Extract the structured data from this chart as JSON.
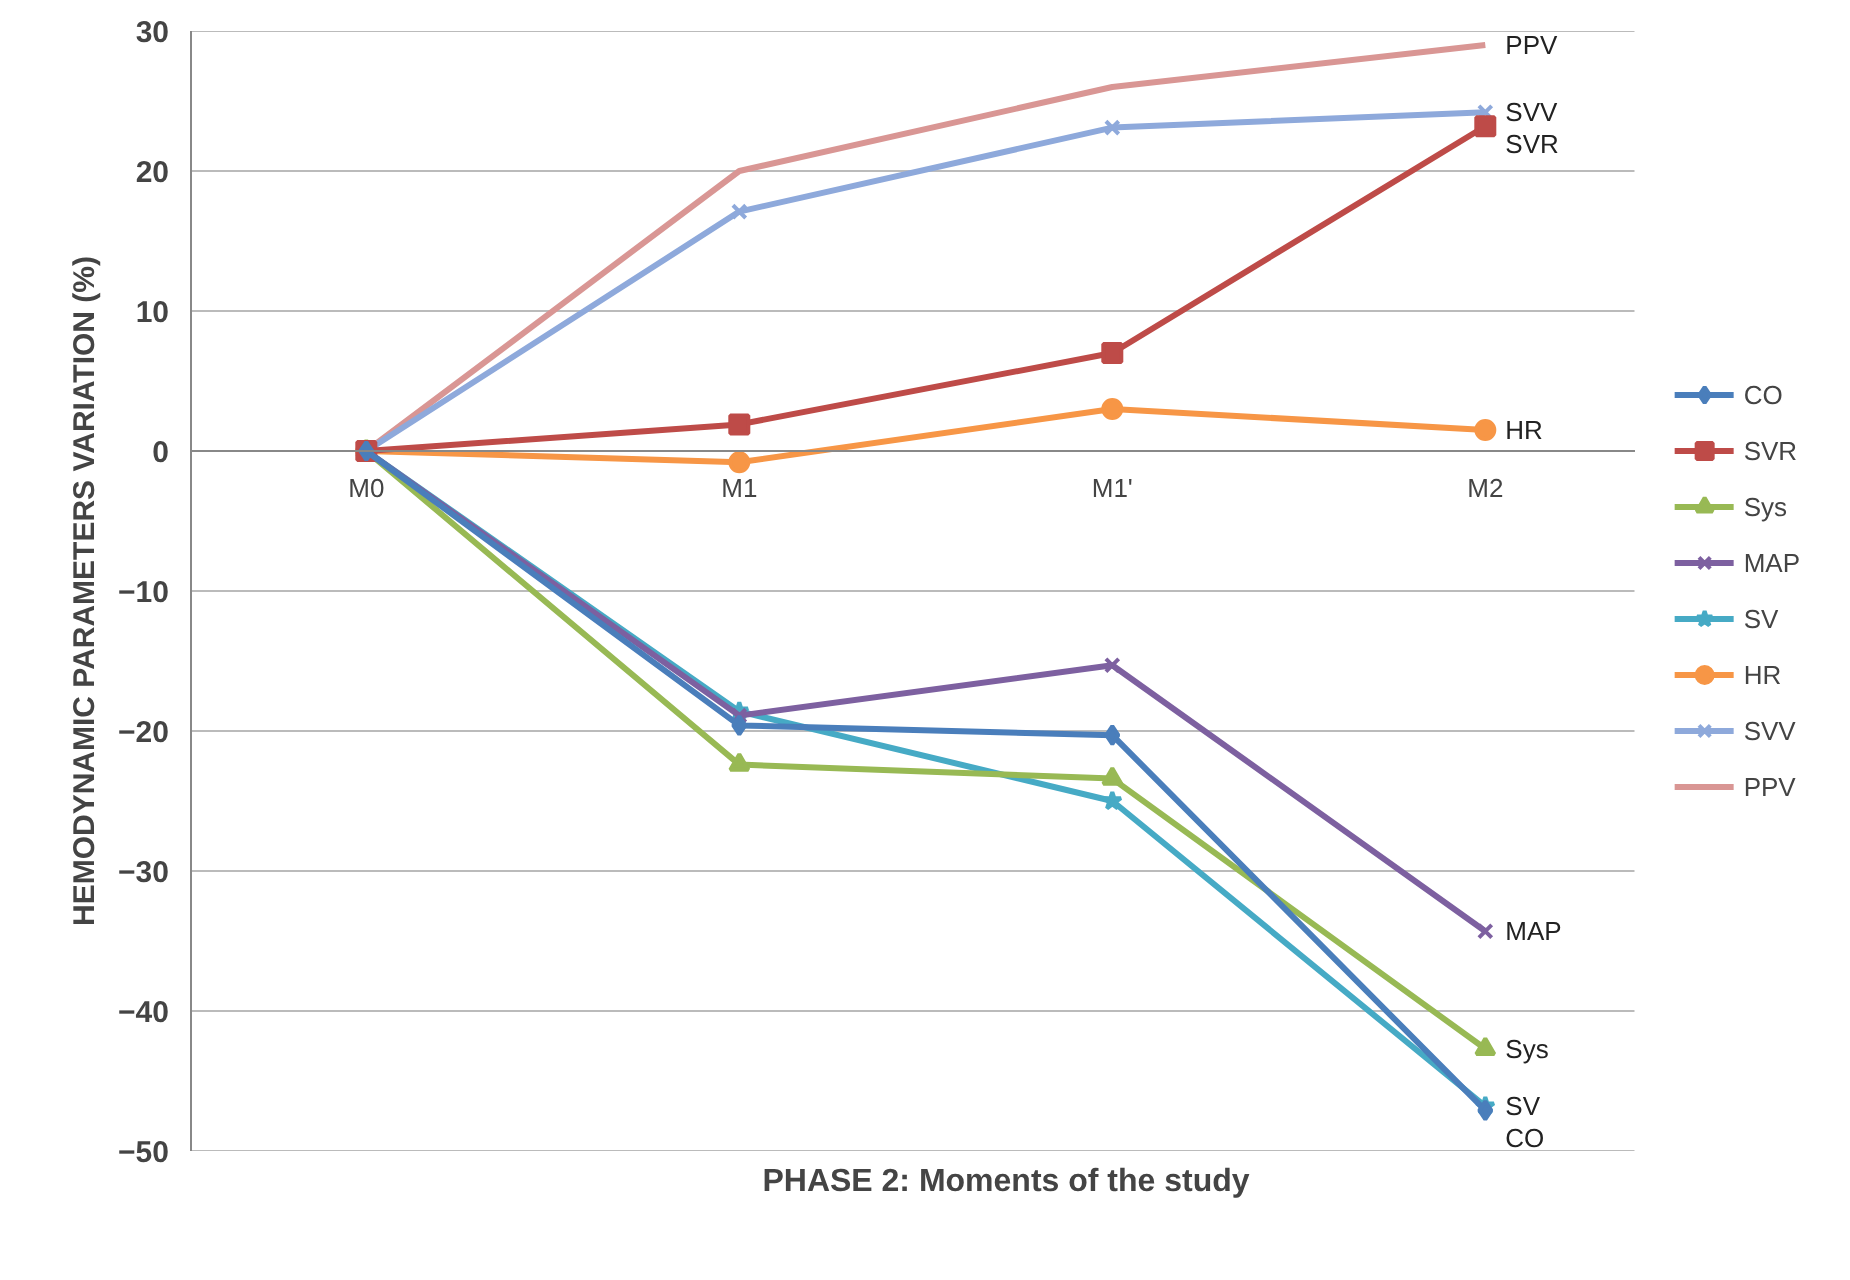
{
  "chart_data": {
    "type": "line",
    "xlabel": "PHASE 2: Moments of the study",
    "ylabel": "HEMODYNAMIC PARAMETERS VARIATION (%)",
    "categories": [
      "M0",
      "M1",
      "M1'",
      "M2"
    ],
    "ylim": [
      -50,
      30
    ],
    "yticks": [
      -50,
      -40,
      -30,
      -20,
      -10,
      0,
      10,
      20,
      30
    ],
    "grid": "y",
    "legend": "right",
    "series": [
      {
        "name": "CO",
        "color": "#4a7ebb",
        "marker": "diamond",
        "values": [
          0,
          -19.6,
          -20.3,
          -47.1
        ]
      },
      {
        "name": "SVR",
        "color": "#be4b48",
        "marker": "square",
        "values": [
          0,
          1.9,
          7.0,
          23.2
        ]
      },
      {
        "name": "Sys",
        "color": "#98b954",
        "marker": "triangle",
        "values": [
          0,
          -22.4,
          -23.4,
          -42.7
        ]
      },
      {
        "name": "MAP",
        "color": "#7d60a0",
        "marker": "cross",
        "values": [
          0,
          -18.9,
          -15.3,
          -34.3
        ]
      },
      {
        "name": "SV",
        "color": "#46aac5",
        "marker": "star",
        "values": [
          0,
          -18.6,
          -25.0,
          -46.8
        ]
      },
      {
        "name": "HR",
        "color": "#f79646",
        "marker": "circle",
        "values": [
          0,
          -0.8,
          3.0,
          1.5
        ]
      },
      {
        "name": "SVV",
        "color": "#8ea9db",
        "marker": "cross",
        "values": [
          0,
          17.1,
          23.1,
          24.2
        ]
      },
      {
        "name": "PPV",
        "color": "#d99694",
        "marker": "none",
        "values": [
          0,
          20,
          26,
          29
        ]
      }
    ]
  }
}
